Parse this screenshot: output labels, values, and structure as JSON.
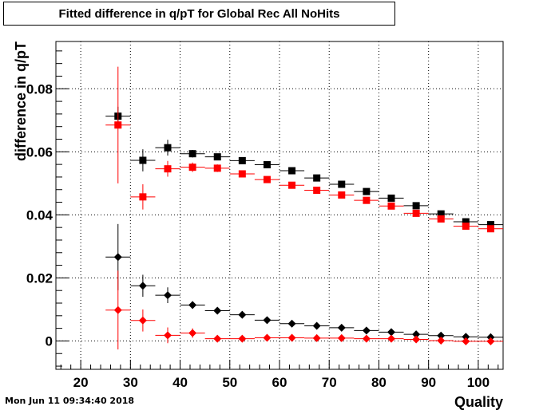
{
  "chart_data": {
    "type": "scatter",
    "title": "Fitted difference in q/pT for Global Rec All NoHits",
    "xlabel": "Quality",
    "ylabel": "difference in q/pT",
    "xlim": [
      15,
      105
    ],
    "ylim": [
      -0.009,
      0.095
    ],
    "x_ticks": [
      20,
      30,
      40,
      50,
      60,
      70,
      80,
      90,
      100
    ],
    "y_ticks": [
      0,
      0.02,
      0.04,
      0.06,
      0.08
    ],
    "y_tick_labels": [
      "0",
      "0.02",
      "0.04",
      "0.06",
      "0.08"
    ],
    "grid": true,
    "x_error": 2.5,
    "series": [
      {
        "marker": "square",
        "color": "#000000",
        "points": [
          {
            "x": 27.5,
            "y": 0.0713,
            "err": 0.003
          },
          {
            "x": 32.5,
            "y": 0.0573,
            "err": 0.0035
          },
          {
            "x": 37.5,
            "y": 0.0613,
            "err": 0.0025
          },
          {
            "x": 42.5,
            "y": 0.0594,
            "err": 0.0012
          },
          {
            "x": 47.5,
            "y": 0.0584,
            "err": 0.001
          },
          {
            "x": 52.5,
            "y": 0.0572,
            "err": 0.0008
          },
          {
            "x": 57.5,
            "y": 0.0559,
            "err": 0.0008
          },
          {
            "x": 62.5,
            "y": 0.054,
            "err": 0.0008
          },
          {
            "x": 67.5,
            "y": 0.0517,
            "err": 0.0008
          },
          {
            "x": 72.5,
            "y": 0.0497,
            "err": 0.0007
          },
          {
            "x": 77.5,
            "y": 0.0474,
            "err": 0.0007
          },
          {
            "x": 82.5,
            "y": 0.0453,
            "err": 0.0007
          },
          {
            "x": 87.5,
            "y": 0.0429,
            "err": 0.0007
          },
          {
            "x": 92.5,
            "y": 0.0403,
            "err": 0.0007
          },
          {
            "x": 97.5,
            "y": 0.0378,
            "err": 0.0006
          },
          {
            "x": 102.5,
            "y": 0.0369,
            "err": 0.0006
          }
        ]
      },
      {
        "marker": "square",
        "color": "#ff0000",
        "points": [
          {
            "x": 27.5,
            "y": 0.0685,
            "err": 0.0185
          },
          {
            "x": 32.5,
            "y": 0.0457,
            "err": 0.004
          },
          {
            "x": 37.5,
            "y": 0.0546,
            "err": 0.0025
          },
          {
            "x": 42.5,
            "y": 0.0551,
            "err": 0.0015
          },
          {
            "x": 47.5,
            "y": 0.0548,
            "err": 0.0012
          },
          {
            "x": 52.5,
            "y": 0.053,
            "err": 0.001
          },
          {
            "x": 57.5,
            "y": 0.0512,
            "err": 0.0009
          },
          {
            "x": 62.5,
            "y": 0.0494,
            "err": 0.0008
          },
          {
            "x": 67.5,
            "y": 0.0478,
            "err": 0.0008
          },
          {
            "x": 72.5,
            "y": 0.0463,
            "err": 0.0008
          },
          {
            "x": 77.5,
            "y": 0.0446,
            "err": 0.0007
          },
          {
            "x": 82.5,
            "y": 0.0428,
            "err": 0.0007
          },
          {
            "x": 87.5,
            "y": 0.0405,
            "err": 0.0007
          },
          {
            "x": 92.5,
            "y": 0.0387,
            "err": 0.0007
          },
          {
            "x": 97.5,
            "y": 0.0364,
            "err": 0.0006
          },
          {
            "x": 102.5,
            "y": 0.0356,
            "err": 0.0006
          }
        ]
      },
      {
        "marker": "diamond",
        "color": "#000000",
        "points": [
          {
            "x": 27.5,
            "y": 0.0266,
            "err": 0.0105
          },
          {
            "x": 32.5,
            "y": 0.0175,
            "err": 0.0035
          },
          {
            "x": 37.5,
            "y": 0.0145,
            "err": 0.0025
          },
          {
            "x": 42.5,
            "y": 0.0114,
            "err": 0.0012
          },
          {
            "x": 47.5,
            "y": 0.0096,
            "err": 0.001
          },
          {
            "x": 52.5,
            "y": 0.0083,
            "err": 0.0009
          },
          {
            "x": 57.5,
            "y": 0.0066,
            "err": 0.0008
          },
          {
            "x": 62.5,
            "y": 0.0055,
            "err": 0.0008
          },
          {
            "x": 67.5,
            "y": 0.0048,
            "err": 0.0007
          },
          {
            "x": 72.5,
            "y": 0.0042,
            "err": 0.0007
          },
          {
            "x": 77.5,
            "y": 0.0033,
            "err": 0.0007
          },
          {
            "x": 82.5,
            "y": 0.0028,
            "err": 0.0007
          },
          {
            "x": 87.5,
            "y": 0.0021,
            "err": 0.0006
          },
          {
            "x": 92.5,
            "y": 0.0017,
            "err": 0.0006
          },
          {
            "x": 97.5,
            "y": 0.0013,
            "err": 0.0006
          },
          {
            "x": 102.5,
            "y": 0.0012,
            "err": 0.0006
          }
        ]
      },
      {
        "marker": "diamond",
        "color": "#ff0000",
        "points": [
          {
            "x": 27.5,
            "y": 0.0098,
            "err": 0.0125
          },
          {
            "x": 32.5,
            "y": 0.0065,
            "err": 0.0035
          },
          {
            "x": 37.5,
            "y": 0.0018,
            "err": 0.0025
          },
          {
            "x": 42.5,
            "y": 0.0025,
            "err": 0.0015
          },
          {
            "x": 47.5,
            "y": 0.0007,
            "err": 0.001
          },
          {
            "x": 52.5,
            "y": 0.0007,
            "err": 0.0009
          },
          {
            "x": 57.5,
            "y": 0.001,
            "err": 0.0008
          },
          {
            "x": 62.5,
            "y": 0.001,
            "err": 0.0008
          },
          {
            "x": 67.5,
            "y": 0.0009,
            "err": 0.0008
          },
          {
            "x": 72.5,
            "y": 0.0009,
            "err": 0.0007
          },
          {
            "x": 77.5,
            "y": 0.0007,
            "err": 0.0007
          },
          {
            "x": 82.5,
            "y": 0.0007,
            "err": 0.0007
          },
          {
            "x": 87.5,
            "y": 0.0005,
            "err": 0.0006
          },
          {
            "x": 92.5,
            "y": 0.0001,
            "err": 0.0006
          },
          {
            "x": 97.5,
            "y": -0.0001,
            "err": 0.0006
          },
          {
            "x": 102.5,
            "y": -0.0001,
            "err": 0.0006
          }
        ]
      }
    ]
  },
  "footer": {
    "timestamp": "Mon Jun 11 09:34:40 2018"
  }
}
